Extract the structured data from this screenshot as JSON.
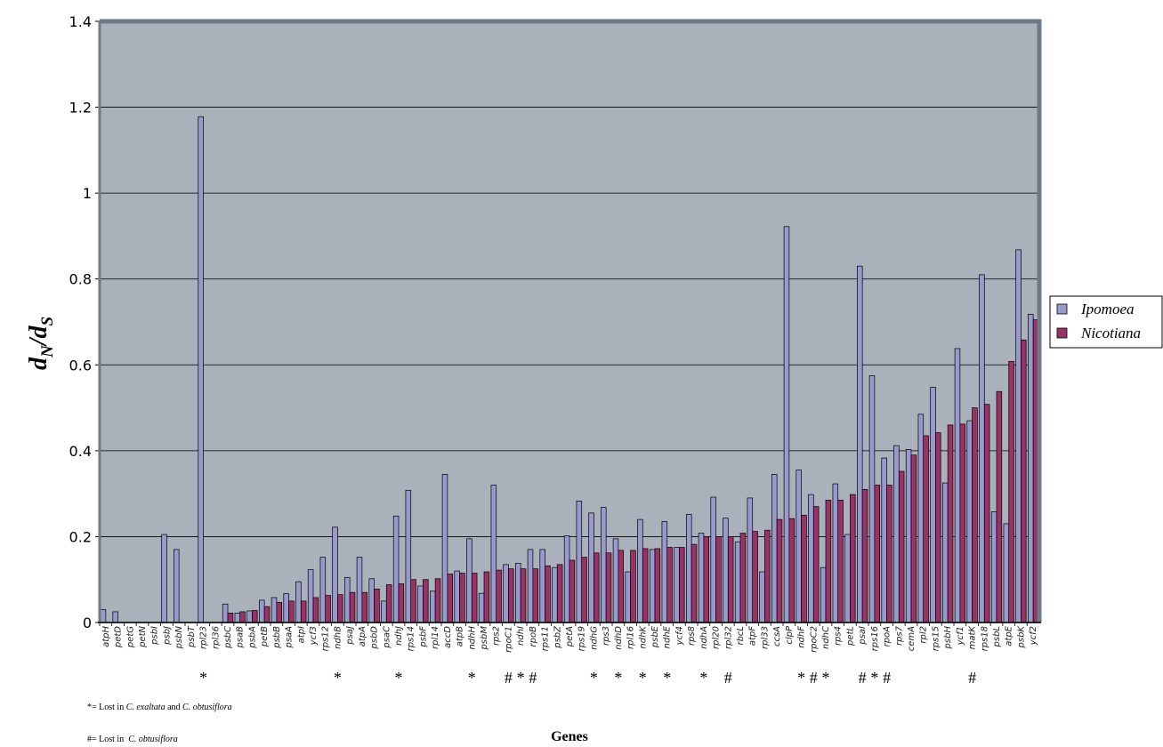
{
  "chart_data": {
    "type": "bar",
    "ylabel": {
      "main": "d",
      "sub1": "N",
      "slash": "/",
      "main2": "d",
      "sub2": "S"
    },
    "xlabel": "Genes",
    "ylim": [
      0,
      1.4
    ],
    "yticks": [
      "0",
      "0.2",
      "0.4",
      "0.6",
      "0.8",
      "1",
      "1.2",
      "1.4"
    ],
    "ytick_values": [
      0,
      0.2,
      0.4,
      0.6,
      0.8,
      1.0,
      1.2,
      1.4
    ],
    "grid": true,
    "legend_position": "right",
    "colors": {
      "Ipomoea": "#9999cc",
      "Nicotiana": "#993366",
      "plot_bg": "#a9b1bb",
      "frame": "#6e7a85"
    },
    "categories": [
      "atpH",
      "petD",
      "petG",
      "petN",
      "psbI",
      "psbJ",
      "psbN",
      "psbT",
      "rpl23",
      "rpl36",
      "psbC",
      "psaB",
      "psbA",
      "petB",
      "psbB",
      "psaA",
      "atpI",
      "ycf3",
      "rps12",
      "ndhB",
      "psaJ",
      "atpA",
      "psbD",
      "psaC",
      "ndhJ",
      "rps14",
      "psbF",
      "rpl14",
      "accD",
      "atpB",
      "ndhH",
      "psbM",
      "rps2",
      "rpoC1",
      "ndhI",
      "rpoB",
      "rps11",
      "psbZ",
      "petA",
      "rps19",
      "ndhG",
      "rps3",
      "ndhD",
      "rpl16",
      "ndhK",
      "psbE",
      "ndhE",
      "ycf4",
      "rps8",
      "ndhA",
      "rpl20",
      "rpl32",
      "rbcL",
      "atpF",
      "rpl33",
      "ccsA",
      "clpP",
      "ndhF",
      "rpoC2",
      "ndhC",
      "rps4",
      "petL",
      "psaI",
      "rps16",
      "rpoA",
      "rps7",
      "cemA",
      "rpl2",
      "rps15",
      "psbH",
      "ycf1",
      "matK",
      "rps18",
      "psbL",
      "atpE",
      "psbK",
      "ycf2"
    ],
    "series": [
      {
        "name": "Ipomoea",
        "values": [
          0.03,
          0.025,
          0.0,
          0.0,
          0.0,
          0.205,
          0.17,
          0.0,
          1.178,
          0.0,
          0.043,
          0.022,
          0.027,
          0.052,
          0.058,
          0.067,
          0.095,
          0.123,
          0.152,
          0.222,
          0.105,
          0.152,
          0.102,
          0.05,
          0.248,
          0.308,
          0.085,
          0.073,
          0.345,
          0.12,
          0.195,
          0.068,
          0.32,
          0.135,
          0.138,
          0.17,
          0.17,
          0.128,
          0.202,
          0.283,
          0.255,
          0.268,
          0.195,
          0.118,
          0.24,
          0.17,
          0.235,
          0.175,
          0.252,
          0.208,
          0.292,
          0.243,
          0.188,
          0.29,
          0.118,
          0.345,
          0.922,
          0.355,
          0.298,
          0.128,
          0.323,
          0.205,
          0.83,
          0.575,
          0.383,
          0.412,
          0.403,
          0.485,
          0.548,
          0.325,
          0.638,
          0.47,
          0.81,
          0.258,
          0.23,
          0.868,
          0.718
        ]
      },
      {
        "name": "Nicotiana",
        "values": [
          0.0,
          0.0,
          0.0,
          0.0,
          0.0,
          0.0,
          0.0,
          0.0,
          0.0,
          0.0,
          0.022,
          0.025,
          0.028,
          0.037,
          0.047,
          0.05,
          0.05,
          0.058,
          0.063,
          0.065,
          0.07,
          0.07,
          0.078,
          0.088,
          0.09,
          0.1,
          0.1,
          0.102,
          0.113,
          0.115,
          0.115,
          0.118,
          0.122,
          0.125,
          0.125,
          0.125,
          0.132,
          0.135,
          0.145,
          0.152,
          0.162,
          0.162,
          0.168,
          0.168,
          0.172,
          0.172,
          0.175,
          0.175,
          0.182,
          0.2,
          0.2,
          0.2,
          0.208,
          0.212,
          0.215,
          0.24,
          0.242,
          0.25,
          0.27,
          0.285,
          0.285,
          0.298,
          0.31,
          0.32,
          0.32,
          0.352,
          0.39,
          0.435,
          0.442,
          0.46,
          0.462,
          0.5,
          0.508,
          0.538,
          0.608,
          0.658,
          0.705
        ]
      }
    ],
    "markers": [
      {
        "gene": "rpl23",
        "symbol": "*"
      },
      {
        "gene": "ndhB",
        "symbol": "*"
      },
      {
        "gene": "ndhJ",
        "symbol": "*"
      },
      {
        "gene": "ndhH",
        "symbol": "*"
      },
      {
        "gene": "rpoC1",
        "symbol": "#"
      },
      {
        "gene": "ndhI",
        "symbol": "*"
      },
      {
        "gene": "rpoB",
        "symbol": "#"
      },
      {
        "gene": "ndhG",
        "symbol": "*"
      },
      {
        "gene": "ndhD",
        "symbol": "*"
      },
      {
        "gene": "ndhK",
        "symbol": "*"
      },
      {
        "gene": "ndhE",
        "symbol": "*"
      },
      {
        "gene": "ndhA",
        "symbol": "*"
      },
      {
        "gene": "rpl32",
        "symbol": "#"
      },
      {
        "gene": "ndhF",
        "symbol": "*"
      },
      {
        "gene": "rpoC2",
        "symbol": "#"
      },
      {
        "gene": "ndhC",
        "symbol": "*"
      },
      {
        "gene": "psaI",
        "symbol": "#"
      },
      {
        "gene": "rps16",
        "symbol": "*"
      },
      {
        "gene": "rpoA",
        "symbol": "#"
      },
      {
        "gene": "matK",
        "symbol": "#"
      }
    ]
  },
  "legend": [
    {
      "label": "Ipomoea",
      "color": "#9999cc"
    },
    {
      "label": "Nicotiana",
      "color": "#993366"
    }
  ],
  "notes": {
    "star": {
      "prefix": "*= Lost in ",
      "species1": "C. exaltata",
      "mid": " and ",
      "species2": "C. obtusiflora"
    },
    "hash": {
      "prefix": "#= Lost in  ",
      "species1": "C. obtusiflora"
    }
  }
}
